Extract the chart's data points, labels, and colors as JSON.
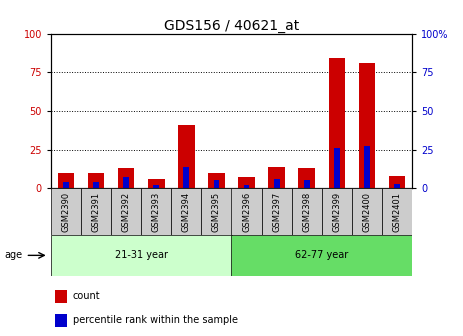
{
  "title": "GDS156 / 40621_at",
  "samples": [
    "GSM2390",
    "GSM2391",
    "GSM2392",
    "GSM2393",
    "GSM2394",
    "GSM2395",
    "GSM2396",
    "GSM2397",
    "GSM2398",
    "GSM2399",
    "GSM2400",
    "GSM2401"
  ],
  "count_values": [
    10,
    10,
    13,
    6,
    41,
    10,
    7,
    14,
    13,
    84,
    81,
    8
  ],
  "percentile_values": [
    4,
    4,
    7,
    2,
    14,
    5,
    2,
    6,
    5,
    26,
    27,
    3
  ],
  "groups": [
    {
      "label": "21-31 year",
      "start": 0,
      "end": 6
    },
    {
      "label": "62-77 year",
      "start": 6,
      "end": 12
    }
  ],
  "group_colors_light": "#ccffcc",
  "group_colors_dark": "#66dd66",
  "ylim": [
    0,
    100
  ],
  "yticks": [
    0,
    25,
    50,
    75,
    100
  ],
  "bar_color_red": "#cc0000",
  "bar_color_blue": "#0000cc",
  "bg_color": "#ffffff",
  "tick_area_color": "#cccccc",
  "age_label": "age",
  "legend_count": "count",
  "legend_percentile": "percentile rank within the sample",
  "title_fontsize": 10,
  "tick_fontsize": 7,
  "label_fontsize": 6,
  "group_fontsize": 7,
  "legend_fontsize": 7
}
